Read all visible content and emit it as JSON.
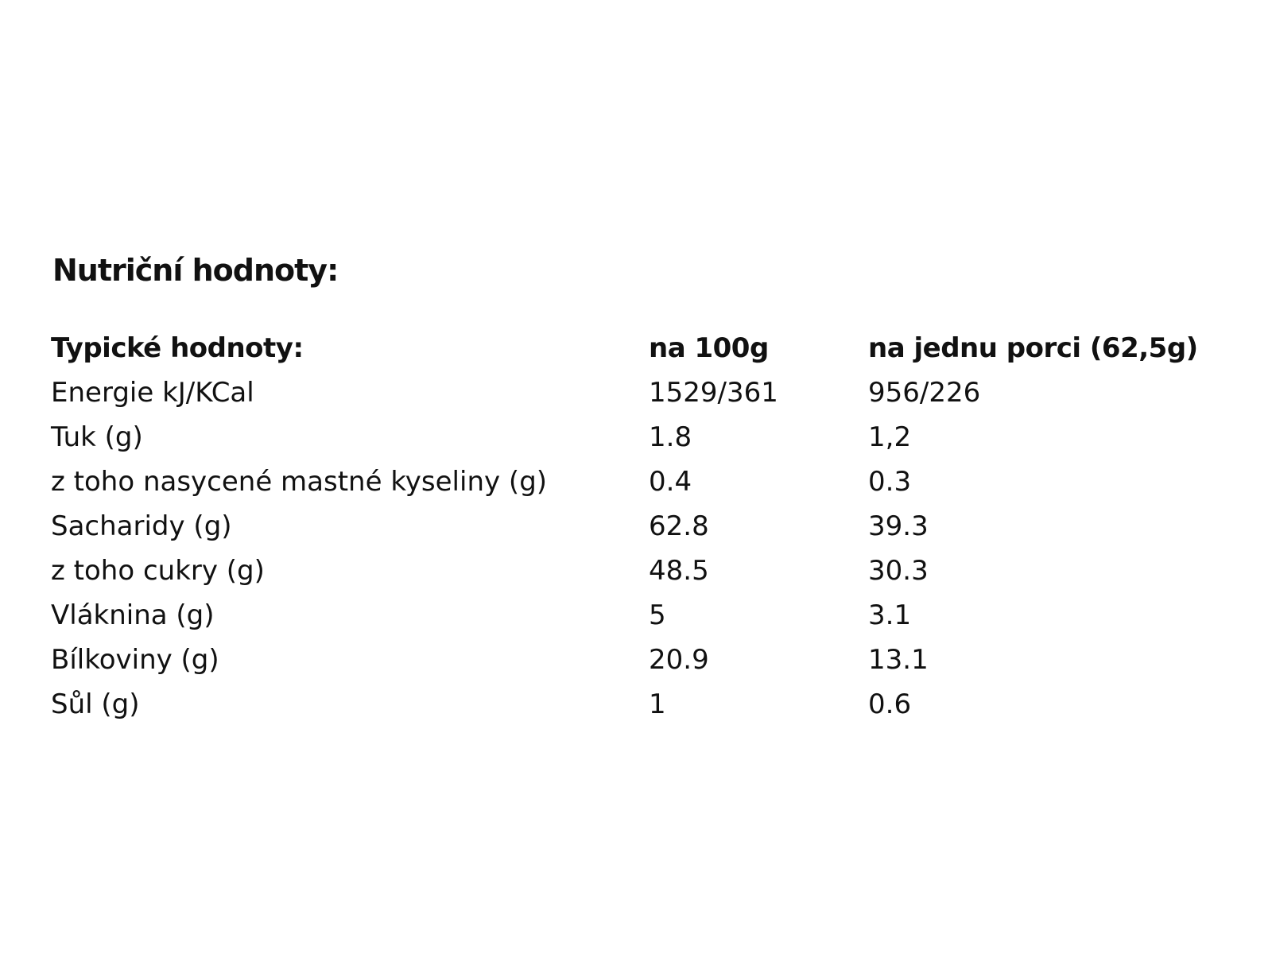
{
  "title": "Nutriční hodnoty:",
  "table": {
    "header": [
      "Typické hodnoty:",
      "na 100g",
      "na jednu porci (62,5g)"
    ],
    "rows": [
      [
        "Energie kJ/KCal",
        "1529/361",
        "956/226"
      ],
      [
        "Tuk (g)",
        "1.8",
        "1,2"
      ],
      [
        "z toho nasycené mastné kyseliny (g)",
        "0.4",
        "0.3"
      ],
      [
        "Sacharidy (g)",
        "62.8",
        "39.3"
      ],
      [
        "z toho cukry (g)",
        "48.5",
        "30.3"
      ],
      [
        "Vláknina (g)",
        "5",
        "3.1"
      ],
      [
        "Bílkoviny (g)",
        "20.9",
        "13.1"
      ],
      [
        "Sůl (g)",
        "1",
        "0.6"
      ]
    ]
  }
}
